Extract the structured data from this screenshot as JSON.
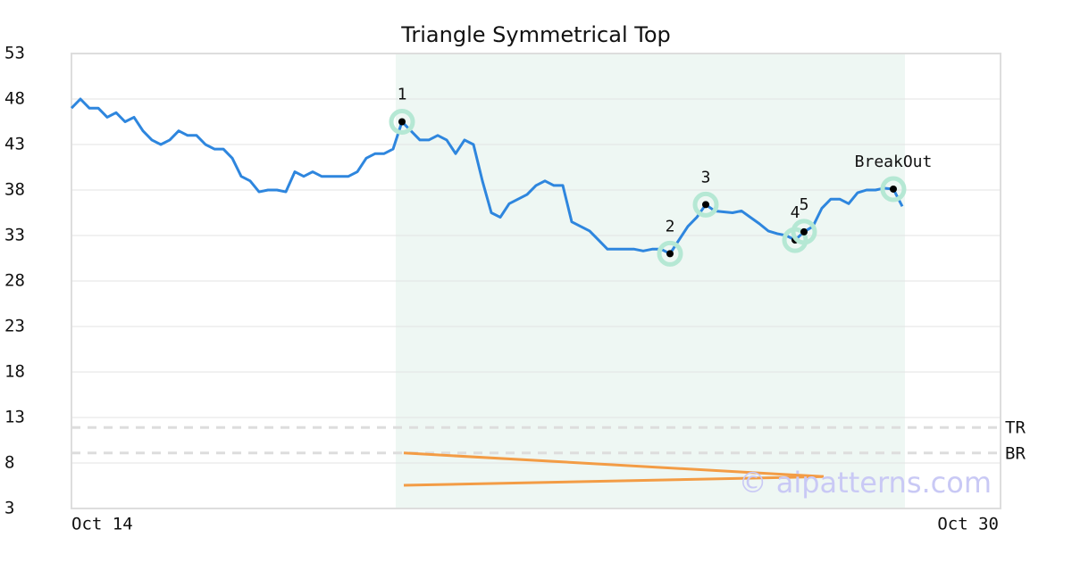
{
  "chart_data": {
    "type": "line",
    "title": "Triangle Symmetrical Top",
    "x": [
      0,
      1,
      2,
      3,
      4,
      5,
      6,
      7,
      8,
      9,
      10,
      11,
      12,
      13,
      14,
      15,
      16,
      17,
      18,
      19,
      20,
      21,
      22,
      23,
      24,
      25,
      26,
      27,
      28,
      29,
      30,
      31,
      32,
      33,
      34,
      35,
      36,
      37,
      38,
      39,
      40,
      41,
      42,
      43,
      44,
      45,
      46,
      47,
      48,
      49,
      50,
      51,
      52,
      53,
      54,
      55,
      56,
      57,
      58,
      59,
      60,
      61,
      62,
      63,
      64,
      65,
      66,
      67,
      68,
      69,
      70,
      71,
      72,
      73,
      74,
      75,
      76,
      77,
      78,
      79,
      80,
      81,
      82,
      83,
      84,
      85,
      86,
      87,
      88,
      89,
      90,
      91,
      92,
      93
    ],
    "values": [
      47,
      48,
      47,
      47,
      46,
      46.5,
      45.5,
      46,
      44.5,
      43.5,
      43,
      43.5,
      44.5,
      44,
      44,
      43,
      42.5,
      42.5,
      41.5,
      39.5,
      39,
      37.8,
      38,
      38,
      37.8,
      40,
      39.5,
      40,
      39.5,
      39.5,
      39.5,
      39.5,
      40,
      41.5,
      42,
      42,
      42.5,
      45.5,
      44.5,
      43.5,
      43.5,
      44,
      43.5,
      42,
      43.5,
      43,
      39,
      35.5,
      35,
      36.5,
      37,
      37.5,
      38.5,
      39,
      38.5,
      38.5,
      34.5,
      34,
      33.5,
      32.5,
      31.5,
      31.5,
      31.5,
      31.5,
      31.3,
      31.5,
      31.5,
      31,
      32.5,
      34,
      35,
      36.4,
      35.7,
      35.6,
      35.5,
      35.7,
      35,
      34.3,
      33.5,
      33.2,
      33,
      32.5,
      33.4,
      34,
      36,
      37,
      37,
      36.5,
      37.7,
      38,
      38,
      38.2,
      38.1,
      36.2
    ],
    "color": "#2e86de",
    "xlim": [
      0,
      104
    ],
    "xticks": [
      {
        "value": 0,
        "label": "Oct 14"
      },
      {
        "value": 104,
        "label": "Oct 30"
      }
    ],
    "ylim": [
      3,
      53
    ],
    "yticks": [
      3,
      8,
      13,
      18,
      23,
      28,
      33,
      38,
      43,
      48,
      53
    ],
    "grid": true,
    "highlight": [
      36.3,
      93.3
    ],
    "annotations": [
      {
        "index": 37,
        "label": "1"
      },
      {
        "index": 67,
        "label": "2"
      },
      {
        "index": 71,
        "label": "3"
      },
      {
        "index": 81,
        "label": "4"
      },
      {
        "index": 82,
        "label": "5"
      },
      {
        "index": 92,
        "label": "BreakOut"
      }
    ],
    "levels": [
      {
        "label": "TR",
        "value": 11.9
      },
      {
        "label": "BR",
        "value": 9.1
      }
    ],
    "trendlines": {
      "color": "#f39c45",
      "lines": [
        {
          "x": [
            37.2,
            84.2
          ],
          "values": [
            9.1,
            6.5
          ]
        },
        {
          "x": [
            37.2,
            84.2
          ],
          "values": [
            5.55,
            6.5
          ]
        }
      ]
    },
    "watermark": "© aipatterns.com"
  }
}
